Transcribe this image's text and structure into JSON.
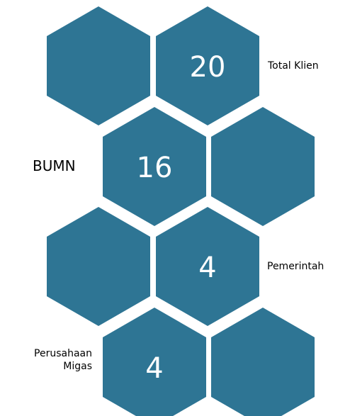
{
  "items": [
    {
      "value": 20,
      "label": "Total Klien"
    },
    {
      "value": 16,
      "label": "BUMN"
    },
    {
      "value": 4,
      "label": "Pemerintah"
    },
    {
      "value": 4,
      "label": "Perusahaan Migas"
    }
  ]
}
